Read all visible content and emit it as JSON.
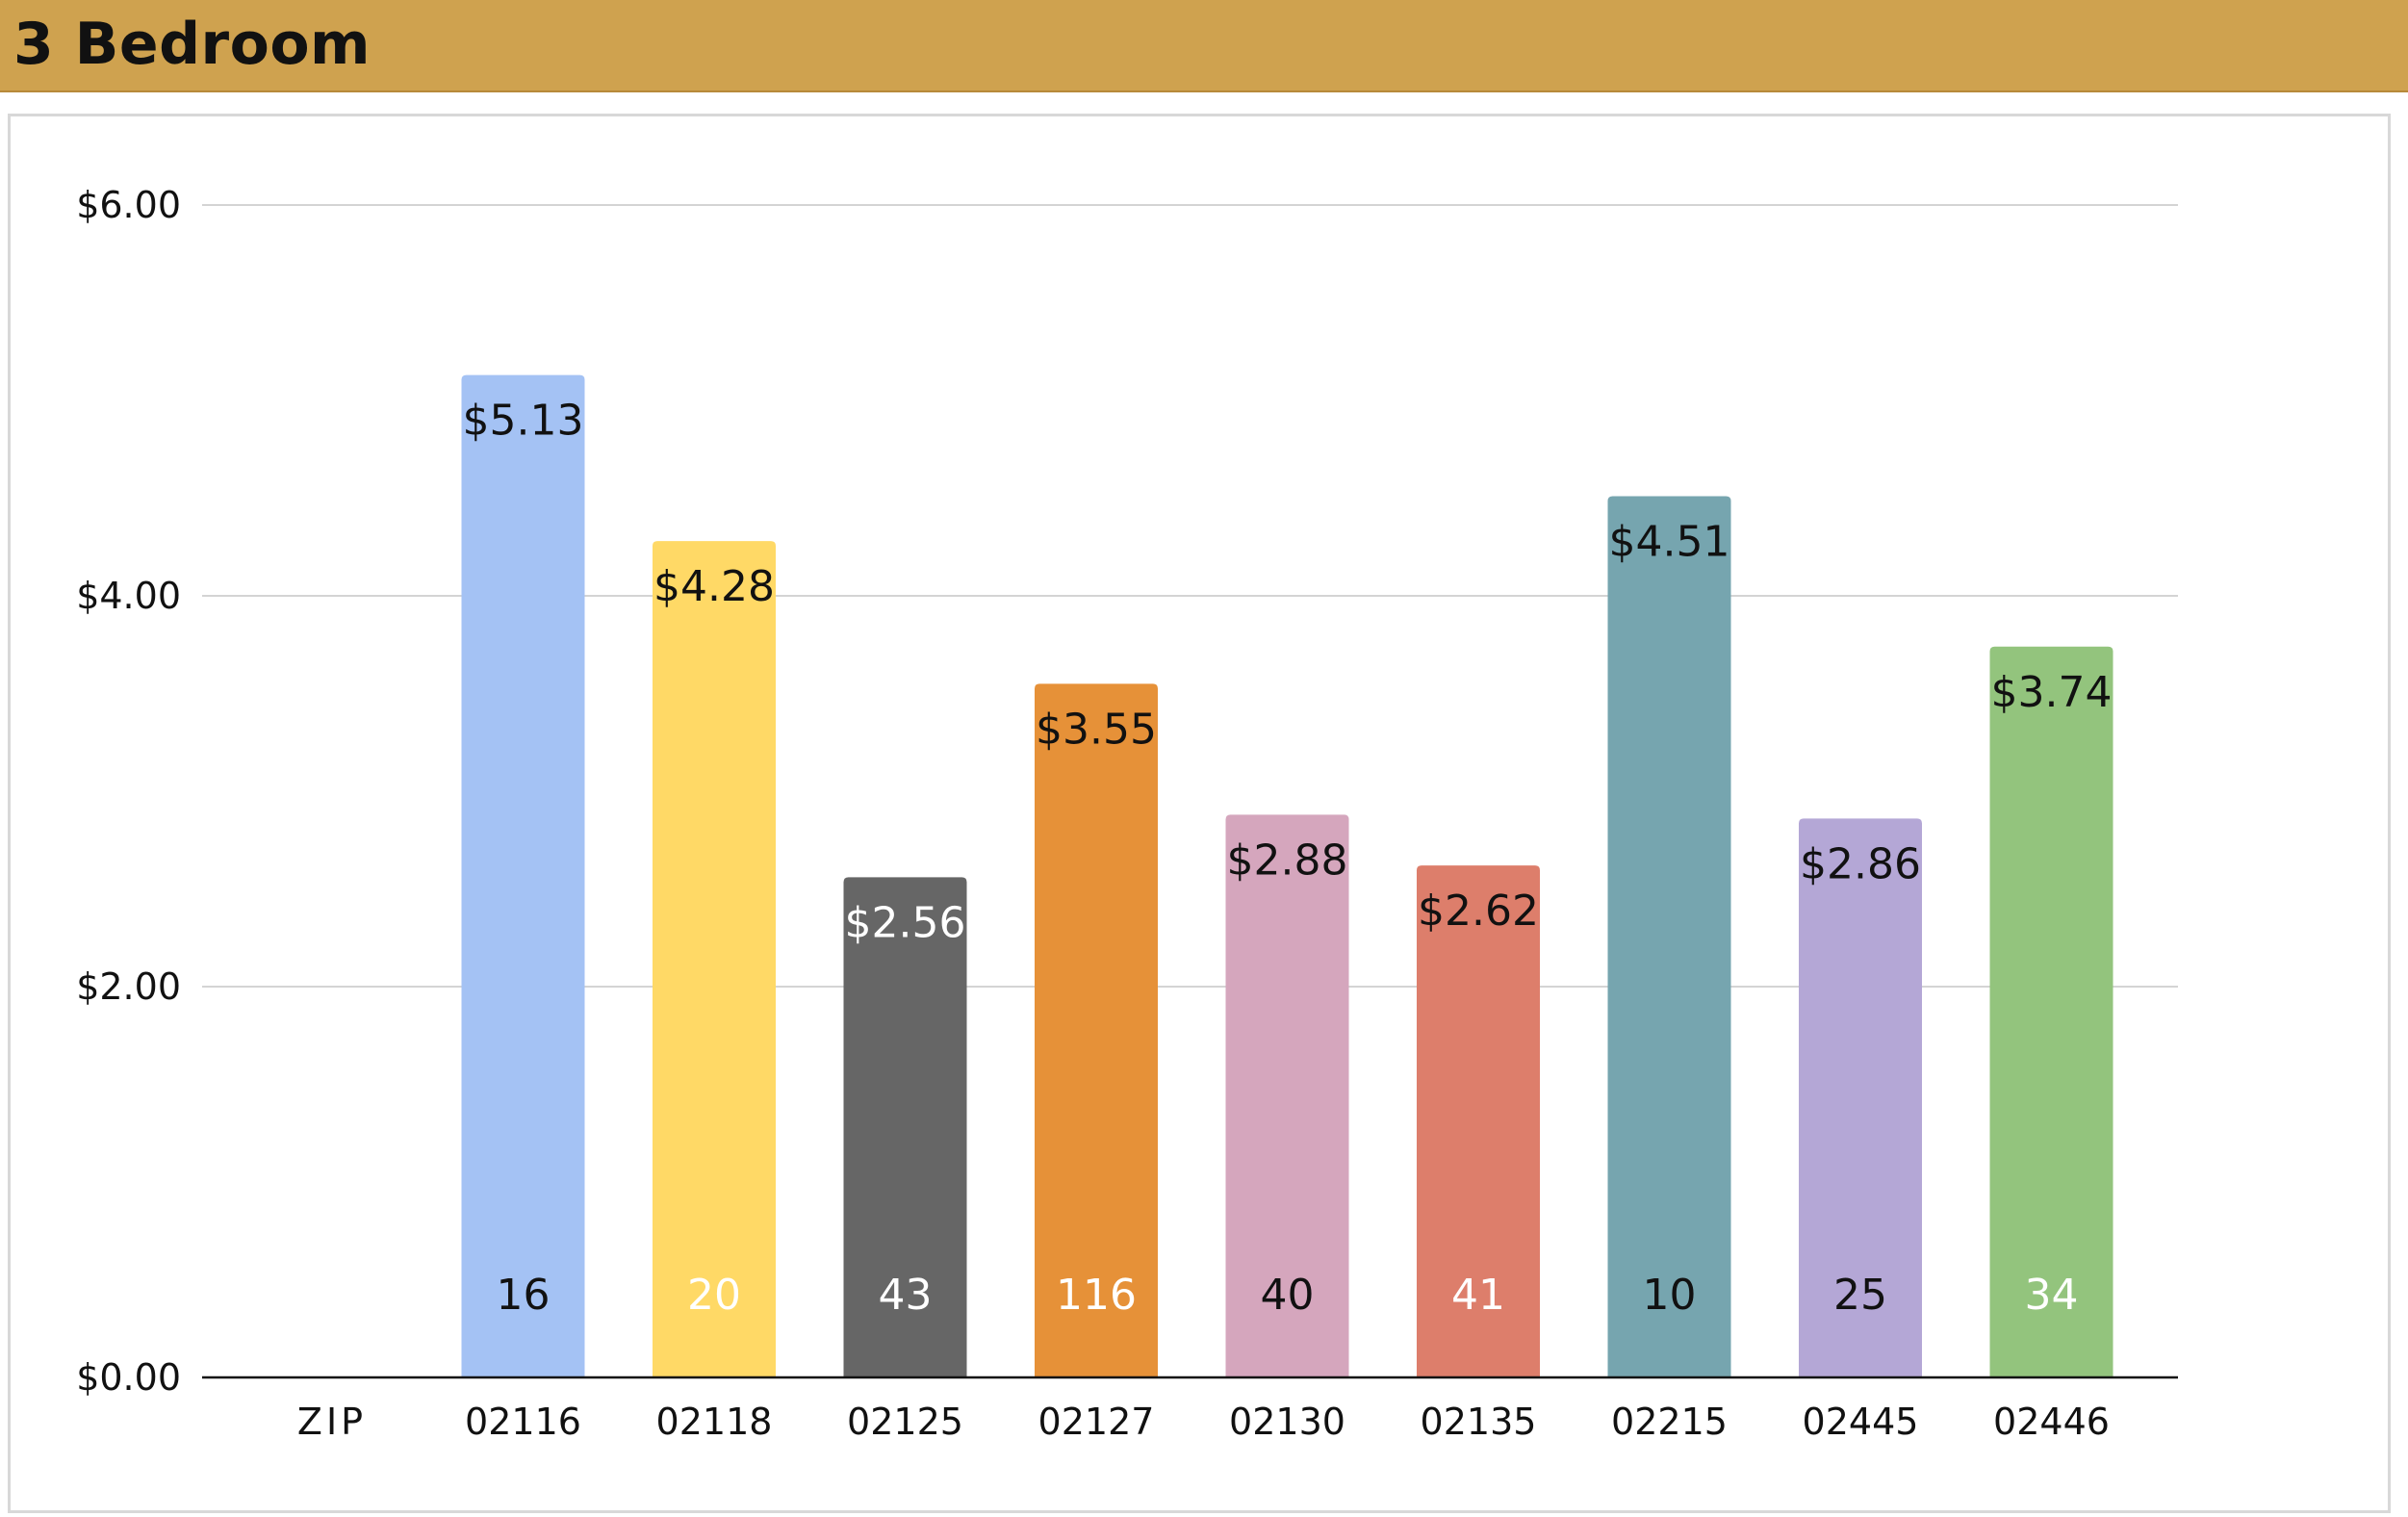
{
  "header": {
    "title": "3 Bedroom"
  },
  "colors": {
    "header_background": "#cfa24f",
    "gridline": "#d4d4d4",
    "axis": "#111111"
  },
  "chart_data": {
    "type": "bar",
    "title": "3 Bedroom",
    "xlabel": "",
    "ylabel": "",
    "ylim": [
      0,
      6
    ],
    "y_ticks": [
      {
        "value": 0,
        "label": "$0.00"
      },
      {
        "value": 2,
        "label": "$2.00"
      },
      {
        "value": 4,
        "label": "$4.00"
      },
      {
        "value": 6,
        "label": "$6.00"
      }
    ],
    "grid": true,
    "legend": "none",
    "categories": [
      "ZIP",
      "02116",
      "02118",
      "02125",
      "02127",
      "02130",
      "02135",
      "02215",
      "02445",
      "02446"
    ],
    "values": [
      null,
      5.13,
      4.28,
      2.56,
      3.55,
      2.88,
      2.62,
      4.51,
      2.86,
      3.74
    ],
    "value_labels": [
      "",
      "$5.13",
      "$4.28",
      "$2.56",
      "$3.55",
      "$2.88",
      "$2.62",
      "$4.51",
      "$2.86",
      "$3.74"
    ],
    "count_labels": [
      "",
      "16",
      "20",
      "43",
      "116",
      "40",
      "41",
      "10",
      "25",
      "34"
    ],
    "bar_colors": [
      "",
      "#a4c2f4",
      "#ffd966",
      "#666666",
      "#e69138",
      "#d5a6bd",
      "#dd7e6b",
      "#76a5af",
      "#b4a7d6",
      "#93c47d"
    ],
    "value_label_colors": [
      "",
      "#111111",
      "#111111",
      "#ffffff",
      "#111111",
      "#111111",
      "#111111",
      "#111111",
      "#111111",
      "#111111"
    ],
    "count_label_colors": [
      "",
      "#111111",
      "#ffffff",
      "#ffffff",
      "#ffffff",
      "#111111",
      "#ffffff",
      "#111111",
      "#111111",
      "#ffffff"
    ]
  }
}
